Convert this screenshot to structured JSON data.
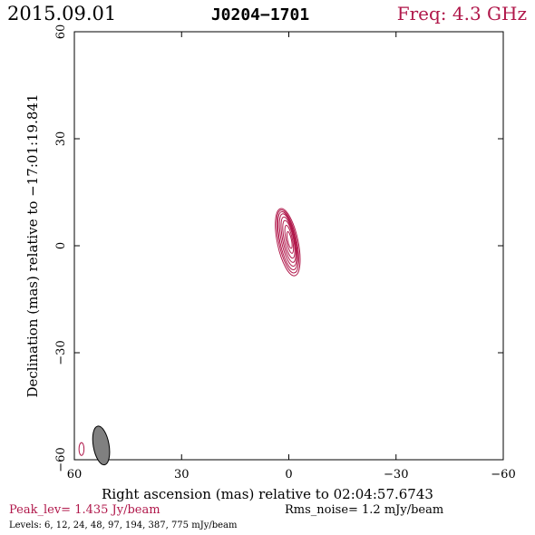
{
  "header": {
    "date": "2015.09.01",
    "source": "J0204−1701",
    "freq": "Freq: 4.3 GHz"
  },
  "colors": {
    "accent": "#b0174a",
    "axis": "#000000",
    "beam_fill": "#808080"
  },
  "chart_data": {
    "type": "contour",
    "title": "J0204−1701",
    "xlabel": "Right ascension (mas) relative to 02:04:57.6743",
    "ylabel": "Declination (mas) relative to −17:01:19.841",
    "xlim": [
      60,
      -60
    ],
    "ylim": [
      -60,
      60
    ],
    "x_ticks": [
      {
        "value": 60,
        "label": "60"
      },
      {
        "value": 30,
        "label": "30"
      },
      {
        "value": 0,
        "label": "0"
      },
      {
        "value": -30,
        "label": "−30"
      },
      {
        "value": -60,
        "label": "−60"
      }
    ],
    "y_ticks": [
      {
        "value": -60,
        "label": "−60"
      },
      {
        "value": -30,
        "label": "−30"
      },
      {
        "value": 0,
        "label": "0"
      },
      {
        "value": 30,
        "label": "30"
      },
      {
        "value": 60,
        "label": "60"
      }
    ],
    "contour_levels_mJy": [
      6,
      12,
      24,
      48,
      97,
      194,
      387,
      775
    ],
    "contours": [
      {
        "level": 6,
        "cx": 0.3,
        "cy": 1.0,
        "a": 2.9,
        "b": 9.6,
        "pa": 12
      },
      {
        "level": 12,
        "cx": 0.3,
        "cy": 1.2,
        "a": 2.5,
        "b": 9.0,
        "pa": 12
      },
      {
        "level": 24,
        "cx": 0.3,
        "cy": 1.4,
        "a": 2.2,
        "b": 8.3,
        "pa": 12
      },
      {
        "level": 48,
        "cx": 0.2,
        "cy": 1.6,
        "a": 1.9,
        "b": 7.5,
        "pa": 12
      },
      {
        "level": 97,
        "cx": 0.1,
        "cy": 1.7,
        "a": 1.6,
        "b": 6.5,
        "pa": 12
      },
      {
        "level": 194,
        "cx": 0.0,
        "cy": 1.8,
        "a": 1.3,
        "b": 5.4,
        "pa": 12
      },
      {
        "level": 387,
        "cx": -0.1,
        "cy": 1.8,
        "a": 0.9,
        "b": 4.0,
        "pa": 12
      },
      {
        "level": 775,
        "cx": -0.2,
        "cy": 1.6,
        "a": 0.55,
        "b": 2.4,
        "pa": 12
      }
    ],
    "beam": {
      "cx": 52.5,
      "cy": -56.0,
      "major": 5.5,
      "minor": 2.2,
      "pa": 10
    },
    "beam_marker": {
      "cx": 58.0,
      "cy": -57.0,
      "major": 1.8,
      "minor": 0.7,
      "pa": 0
    },
    "grid": false
  },
  "footer": {
    "peak": "Peak_lev=  1.435 Jy/beam",
    "rms": "Rms_noise=  1.2 mJy/beam",
    "levels": "Levels:   6,  12,  24,  48,  97, 194, 387, 775  mJy/beam"
  }
}
